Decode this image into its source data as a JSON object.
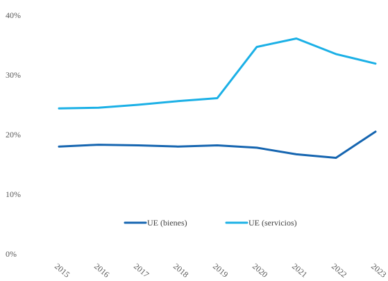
{
  "chart_data": {
    "type": "line",
    "title": "",
    "xlabel": "",
    "ylabel": "",
    "categories": [
      "2015",
      "2016",
      "2017",
      "2018",
      "2019",
      "2020",
      "2021",
      "2022",
      "2023"
    ],
    "ylim": [
      0,
      40
    ],
    "yticks": [
      0,
      10,
      20,
      30,
      40
    ],
    "ytick_labels": [
      "0%",
      "10%",
      "20%",
      "30%",
      "40%"
    ],
    "grid": false,
    "legend_position": "bottom-center",
    "series": [
      {
        "name": "UE (bienes)",
        "color": "#1565b0",
        "values": [
          18.0,
          18.3,
          18.2,
          18.0,
          18.2,
          17.8,
          16.7,
          16.1,
          20.5
        ]
      },
      {
        "name": "UE (servicios)",
        "color": "#1bb0e6",
        "values": [
          24.4,
          24.5,
          25.0,
          25.6,
          26.1,
          34.7,
          36.1,
          33.5,
          31.9
        ]
      }
    ]
  }
}
